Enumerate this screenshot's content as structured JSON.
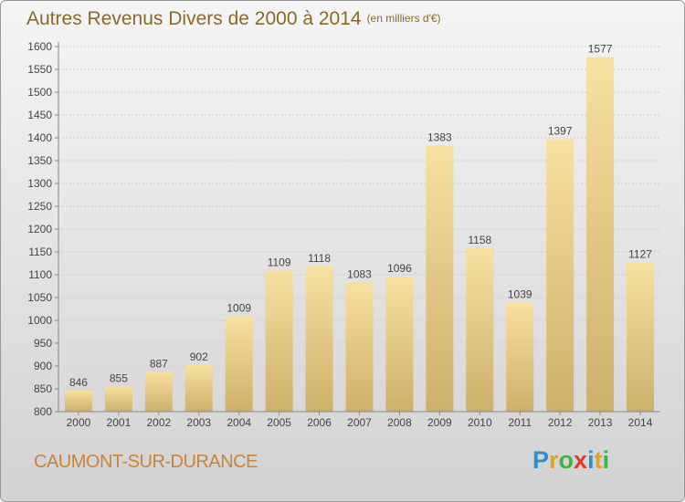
{
  "header": {
    "title": "Autres Revenus Divers de 2000 à 2014",
    "subtitle": "(en milliers d'€)"
  },
  "footer": {
    "commune": "CAUMONT-SUR-DURANCE",
    "logo_letters": [
      "P",
      "r",
      "o",
      "x",
      "i",
      "t",
      "i"
    ],
    "logo_colors": [
      "#2e8fd0",
      "#e8a020",
      "#3ab54a",
      "#e23a2a",
      "#2e8fd0",
      "#e8a020",
      "#3ab54a"
    ]
  },
  "colors": {
    "bar_light": "#f8e0a0",
    "bar_dark": "#cdb06a",
    "title": "#8a6a2a",
    "commune": "#c8843c"
  },
  "chart_data": {
    "type": "bar",
    "title": "Autres Revenus Divers de 2000 à 2014",
    "subtitle": "(en milliers d'€)",
    "categories": [
      "2000",
      "2001",
      "2002",
      "2003",
      "2004",
      "2005",
      "2006",
      "2007",
      "2008",
      "2009",
      "2010",
      "2011",
      "2012",
      "2013",
      "2014"
    ],
    "values": [
      846,
      855,
      887,
      902,
      1009,
      1109,
      1118,
      1083,
      1096,
      1383,
      1158,
      1039,
      1397,
      1577,
      1127
    ],
    "ylim": [
      800,
      1600
    ],
    "yticks": [
      800,
      850,
      900,
      950,
      1000,
      1050,
      1100,
      1150,
      1200,
      1250,
      1300,
      1350,
      1400,
      1450,
      1500,
      1550,
      1600
    ],
    "grid": true,
    "xlabel": "",
    "ylabel": ""
  }
}
